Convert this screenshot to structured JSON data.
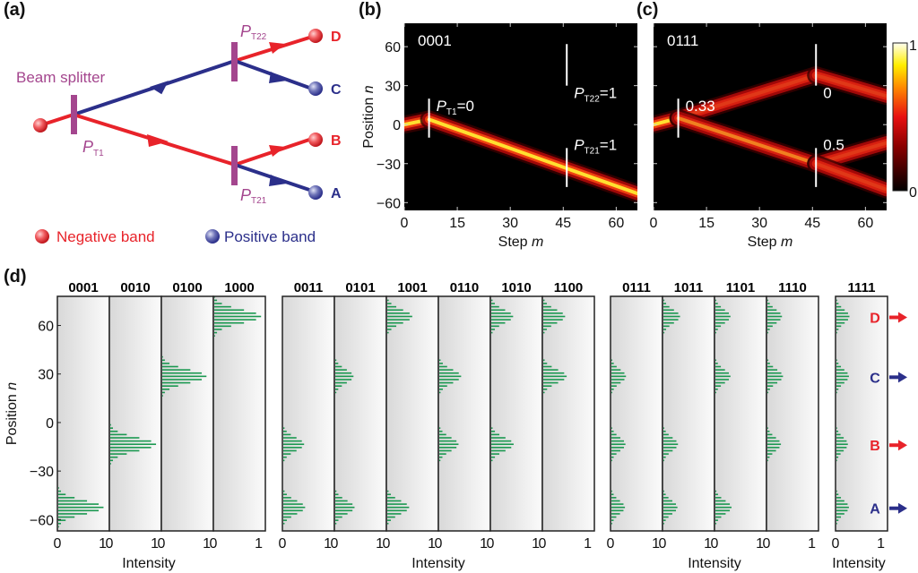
{
  "panel_labels": {
    "a": "(a)",
    "b": "(b)",
    "c": "(c)",
    "d": "(d)"
  },
  "diagram": {
    "beam_splitter_label": "Beam splitter",
    "p_t1": {
      "main": "P",
      "sub": "T1"
    },
    "p_t22": {
      "main": "P",
      "sub": "T22"
    },
    "p_t21": {
      "main": "P",
      "sub": "T21"
    },
    "outputs": [
      "D",
      "C",
      "B",
      "A"
    ],
    "legend": {
      "negative": "Negative band",
      "positive": "Positive band"
    },
    "colors": {
      "negative": "#e8232a",
      "positive": "#2b2f8a",
      "splitter": "#a4468e"
    }
  },
  "chart_data": [
    {
      "id": "b",
      "type": "heatmap",
      "title": "0001",
      "xlabel": "Step m",
      "ylabel": "Position n",
      "xlim": [
        0,
        66
      ],
      "ylim": [
        -66,
        78
      ],
      "xticks": [
        0,
        15,
        30,
        45,
        60
      ],
      "yticks": [
        60,
        30,
        0,
        -30,
        -60
      ],
      "beams": [
        {
          "from": [
            0,
            0
          ],
          "to": [
            7,
            4
          ],
          "weight": 1.0
        },
        {
          "from": [
            7,
            4
          ],
          "to": [
            66,
            -53
          ],
          "weight": 1.0
        }
      ],
      "markers": [
        {
          "m": 7,
          "n_range": [
            -10,
            20
          ],
          "label_main": "P",
          "label_sub": "T1",
          "label_value": "=0"
        },
        {
          "m": 46,
          "n_range": [
            30,
            62
          ],
          "label_main": "P",
          "label_sub": "T22",
          "label_value": "=1"
        },
        {
          "m": 46,
          "n_range": [
            -48,
            -18
          ],
          "label_main": "P",
          "label_sub": "T21",
          "label_value": "=1"
        }
      ]
    },
    {
      "id": "c",
      "type": "heatmap",
      "title": "0111",
      "xlabel": "Step m",
      "xlim": [
        0,
        66
      ],
      "ylim": [
        -66,
        78
      ],
      "xticks": [
        0,
        15,
        30,
        45,
        60
      ],
      "yticks": [
        60,
        30,
        0,
        -30,
        -60
      ],
      "colorbar": {
        "min": "0",
        "max": "1"
      },
      "beams": [
        {
          "from": [
            0,
            0
          ],
          "to": [
            7,
            5
          ],
          "weight": 1.0
        },
        {
          "from": [
            7,
            5
          ],
          "to": [
            46,
            38
          ],
          "weight": 0.55
        },
        {
          "from": [
            46,
            38
          ],
          "to": [
            66,
            22
          ],
          "weight": 0.5
        },
        {
          "from": [
            7,
            5
          ],
          "to": [
            46,
            -30
          ],
          "weight": 0.7
        },
        {
          "from": [
            46,
            -30
          ],
          "to": [
            66,
            -14
          ],
          "weight": 0.45
        },
        {
          "from": [
            46,
            -30
          ],
          "to": [
            66,
            -50
          ],
          "weight": 0.45
        }
      ],
      "markers": [
        {
          "m": 7,
          "n_range": [
            -10,
            20
          ],
          "label_value": "0.33"
        },
        {
          "m": 46,
          "n_range": [
            30,
            62
          ],
          "label_value": "0"
        },
        {
          "m": 46,
          "n_range": [
            -48,
            -18
          ],
          "label_value": "0.5"
        }
      ]
    },
    {
      "id": "d",
      "type": "bar",
      "orientation": "horizontal",
      "ylabel": "Position n",
      "xlabel": "Intensity",
      "ylim": [
        -67,
        78
      ],
      "xlim": [
        0,
        1
      ],
      "yticks": [
        60,
        30,
        0,
        -30,
        -60
      ],
      "peak_positions": {
        "D": 65,
        "C": 28,
        "B": -14,
        "A": -53
      },
      "groups": [
        {
          "panels": [
            {
              "label": "0001",
              "peaks": {
                "A": 0.87
              }
            },
            {
              "label": "0010",
              "peaks": {
                "B": 0.88
              }
            },
            {
              "label": "0100",
              "peaks": {
                "C": 0.85
              }
            },
            {
              "label": "1000",
              "peaks": {
                "D": 0.9
              }
            }
          ]
        },
        {
          "panels": [
            {
              "label": "0011",
              "peaks": {
                "B": 0.4,
                "A": 0.42
              }
            },
            {
              "label": "0101",
              "peaks": {
                "C": 0.35,
                "A": 0.37
              }
            },
            {
              "label": "1001",
              "peaks": {
                "D": 0.48,
                "A": 0.42
              }
            },
            {
              "label": "0110",
              "peaks": {
                "C": 0.42,
                "B": 0.37
              }
            },
            {
              "label": "1010",
              "peaks": {
                "D": 0.42,
                "B": 0.43
              }
            },
            {
              "label": "1100",
              "peaks": {
                "D": 0.42,
                "C": 0.45
              }
            }
          ]
        },
        {
          "panels": [
            {
              "label": "0111",
              "peaks": {
                "C": 0.28,
                "B": 0.27,
                "A": 0.26
              }
            },
            {
              "label": "1011",
              "peaks": {
                "D": 0.32,
                "B": 0.28,
                "A": 0.27
              }
            },
            {
              "label": "1101",
              "peaks": {
                "D": 0.29,
                "C": 0.29,
                "A": 0.31
              }
            },
            {
              "label": "1110",
              "peaks": {
                "D": 0.28,
                "C": 0.3,
                "B": 0.26
              }
            }
          ]
        },
        {
          "panels": [
            {
              "label": "1111",
              "peaks": {
                "D": 0.25,
                "C": 0.24,
                "B": 0.22,
                "A": 0.24
              }
            }
          ]
        }
      ],
      "channel_labels": [
        {
          "label": "D",
          "color": "#e8232a"
        },
        {
          "label": "C",
          "color": "#2b2f8a"
        },
        {
          "label": "B",
          "color": "#e8232a"
        },
        {
          "label": "A",
          "color": "#2b2f8a"
        }
      ],
      "bar_color": "#1a9850"
    }
  ]
}
